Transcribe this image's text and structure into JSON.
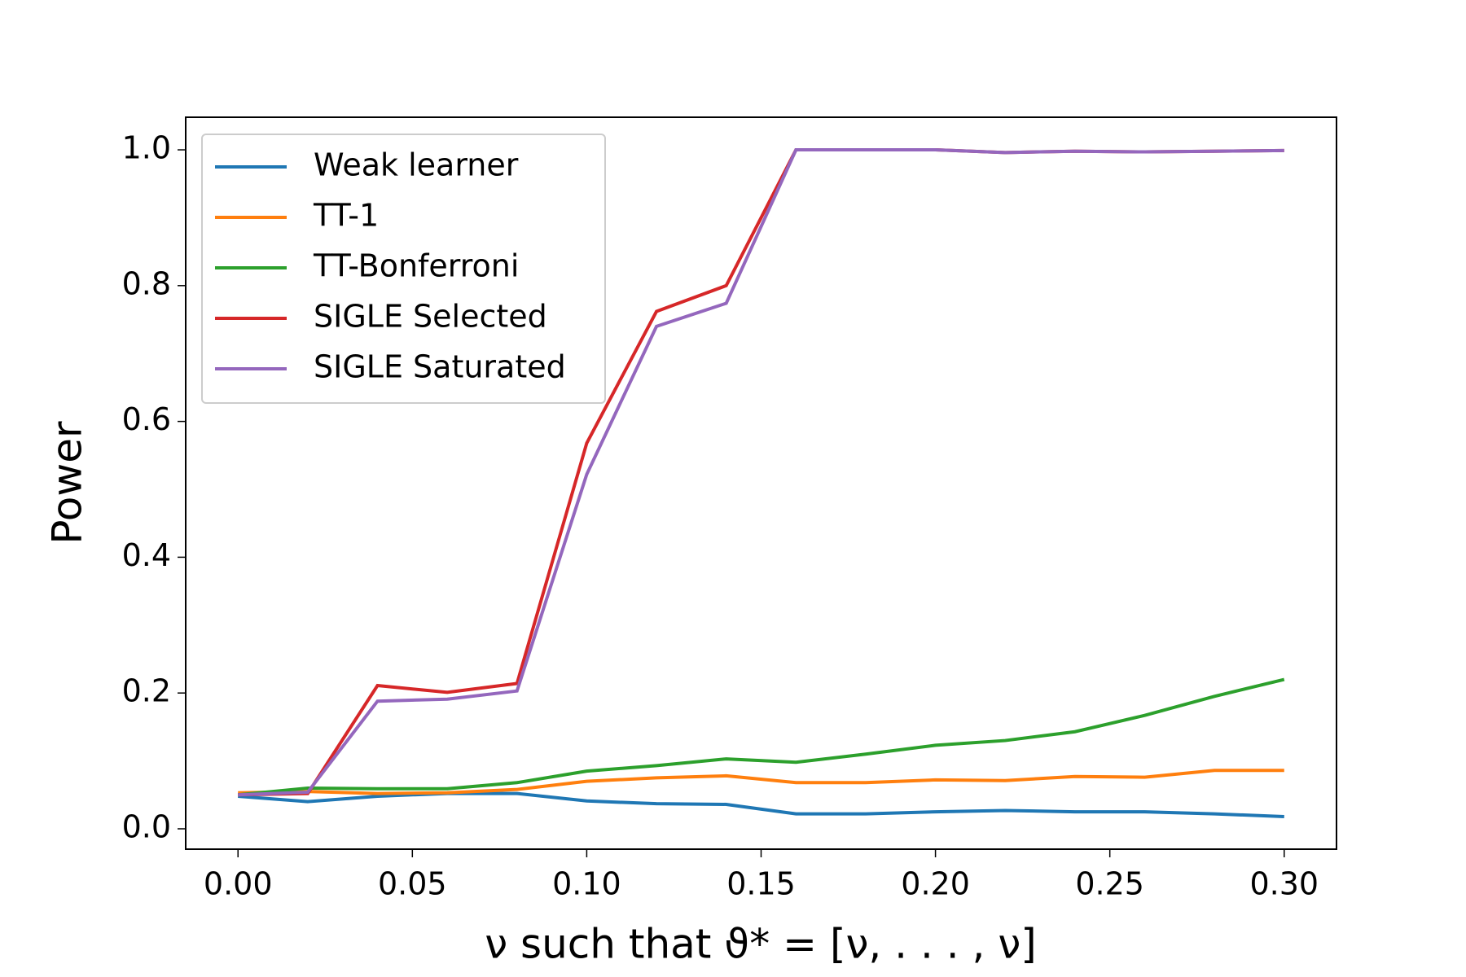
{
  "chart_data": {
    "type": "line",
    "x": [
      0.0,
      0.02,
      0.04,
      0.06,
      0.08,
      0.1,
      0.12,
      0.14,
      0.16,
      0.18,
      0.2,
      0.22,
      0.24,
      0.26,
      0.28,
      0.3
    ],
    "series": [
      {
        "name": "Weak learner",
        "color": "#1f77b4",
        "values": [
          0.048,
          0.04,
          0.048,
          0.052,
          0.052,
          0.041,
          0.037,
          0.036,
          0.022,
          0.022,
          0.025,
          0.027,
          0.025,
          0.025,
          0.022,
          0.018
        ]
      },
      {
        "name": "TT-1",
        "color": "#ff7f0e",
        "values": [
          0.053,
          0.055,
          0.052,
          0.053,
          0.058,
          0.07,
          0.075,
          0.078,
          0.068,
          0.068,
          0.072,
          0.071,
          0.077,
          0.076,
          0.086,
          0.086
        ]
      },
      {
        "name": "TT-Bonferroni",
        "color": "#2ca02c",
        "values": [
          0.05,
          0.06,
          0.059,
          0.059,
          0.068,
          0.085,
          0.093,
          0.103,
          0.098,
          0.11,
          0.123,
          0.13,
          0.143,
          0.167,
          0.195,
          0.22
        ]
      },
      {
        "name": "SIGLE Selected",
        "color": "#d62728",
        "values": [
          0.05,
          0.052,
          0.211,
          0.201,
          0.214,
          0.568,
          0.762,
          0.8,
          1.0,
          1.0,
          1.0,
          0.996,
          0.998,
          0.997,
          0.998,
          0.999
        ]
      },
      {
        "name": "SIGLE Saturated",
        "color": "#9467bd",
        "values": [
          0.05,
          0.054,
          0.188,
          0.191,
          0.203,
          0.522,
          0.74,
          0.774,
          1.0,
          1.0,
          1.0,
          0.996,
          0.998,
          0.997,
          0.998,
          0.999
        ]
      }
    ],
    "xlabel": "ν such that ϑ* = [ν, . . . , ν]",
    "ylabel": "Power",
    "xlim": [
      -0.015,
      0.315
    ],
    "ylim": [
      -0.03,
      1.048
    ],
    "xticks": [
      {
        "value": 0.0,
        "label": "0.00"
      },
      {
        "value": 0.05,
        "label": "0.05"
      },
      {
        "value": 0.1,
        "label": "0.10"
      },
      {
        "value": 0.15,
        "label": "0.15"
      },
      {
        "value": 0.2,
        "label": "0.20"
      },
      {
        "value": 0.25,
        "label": "0.25"
      },
      {
        "value": 0.3,
        "label": "0.30"
      }
    ],
    "yticks": [
      {
        "value": 0.0,
        "label": "0.0"
      },
      {
        "value": 0.2,
        "label": "0.2"
      },
      {
        "value": 0.4,
        "label": "0.4"
      },
      {
        "value": 0.6,
        "label": "0.6"
      },
      {
        "value": 0.8,
        "label": "0.8"
      },
      {
        "value": 1.0,
        "label": "1.0"
      }
    ],
    "legend": "upper left"
  }
}
